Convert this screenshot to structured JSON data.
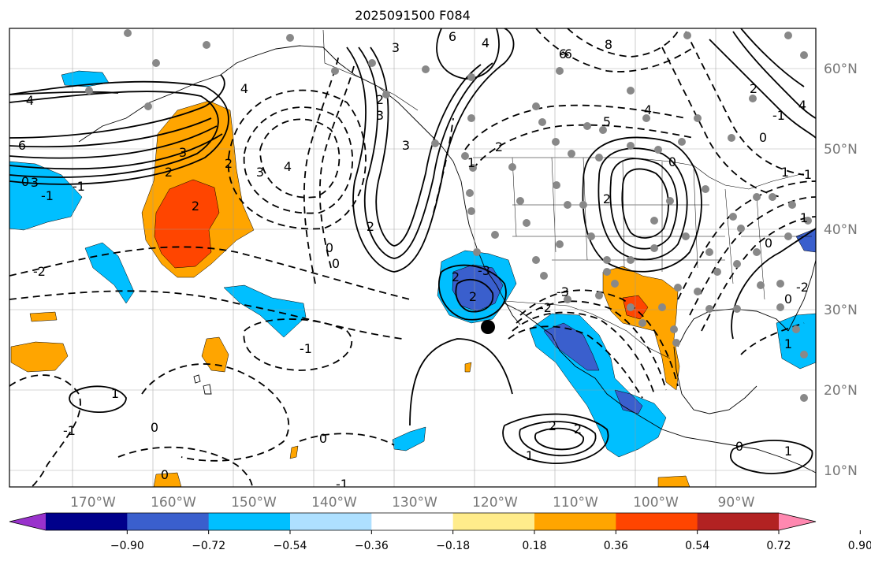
{
  "title": "2025091500 F084",
  "lat_labels": [
    "60°N",
    "50°N",
    "40°N",
    "30°N",
    "20°N",
    "10°N"
  ],
  "lon_labels": [
    "170°W",
    "160°W",
    "150°W",
    "140°W",
    "130°W",
    "120°W",
    "110°W",
    "100°W",
    "90°W"
  ],
  "colorbar": {
    "tick_labels": [
      "−0.90",
      "−0.72",
      "−0.54",
      "−0.36",
      "−0.18",
      "0.18",
      "0.36",
      "0.54",
      "0.72",
      "0.90"
    ],
    "colors": [
      "#9932cc",
      "#00008b",
      "#3a5fcd",
      "#00bfff",
      "#aee0ff",
      "#ffffff",
      "#ffec8b",
      "#ffa500",
      "#ff4500",
      "#b22222",
      "#ff88b0"
    ]
  },
  "contour_labels": [
    "6",
    "4",
    "3",
    "6",
    "4",
    "3",
    "2",
    "-1",
    "2",
    "3",
    "2",
    "-2",
    "2",
    "2",
    "3",
    "4",
    "0",
    "0",
    "2",
    "-1",
    "1",
    "0",
    "0",
    "0",
    "-1",
    "-1",
    "2",
    "2",
    "1",
    "-2",
    "1",
    "1",
    "0",
    "0",
    "4",
    "5",
    "4",
    "0",
    "-1",
    "2",
    "3",
    "0",
    "-1",
    "1",
    "2",
    "-6",
    "-3",
    "-2",
    "-3",
    "6",
    "8",
    "1",
    "3",
    "2",
    "1",
    "4",
    "2",
    "0",
    "0",
    "1"
  ],
  "fill_colors": {
    "orange": "#ffa500",
    "red": "#ff4500",
    "cyan": "#00bfff",
    "blue": "#3a5fcd"
  }
}
